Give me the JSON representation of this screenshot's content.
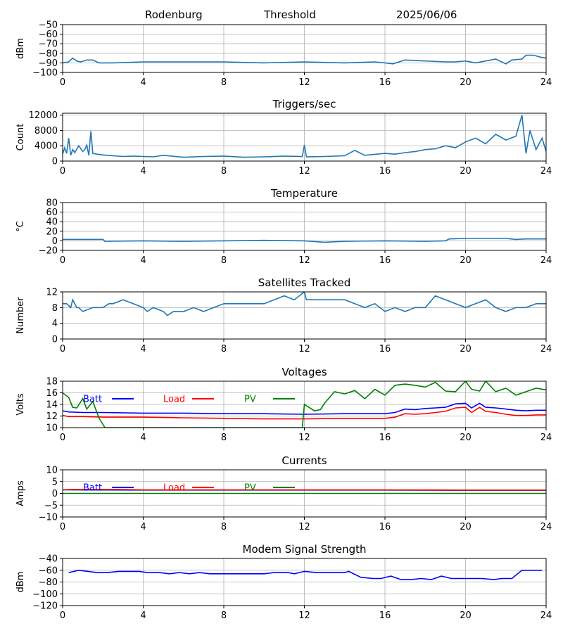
{
  "header": {
    "station": "Rodenburg",
    "mode": "Threshold",
    "date": "2025/06/06"
  },
  "chart_data": [
    {
      "type": "line",
      "title": "",
      "ylabel": "dBm",
      "xlim": [
        0,
        24
      ],
      "xticks": [
        0,
        4,
        8,
        12,
        16,
        20,
        24
      ],
      "ylim": [
        -100,
        -50
      ],
      "yticks": [
        -100,
        -90,
        -80,
        -70,
        -60,
        -50
      ],
      "grid": true,
      "series": [
        {
          "color": "#1f77b4",
          "x": [
            0,
            0.3,
            0.5,
            0.7,
            0.9,
            1.2,
            1.5,
            1.8,
            2.5,
            4,
            6,
            8,
            10,
            12,
            14,
            15.5,
            16,
            16.4,
            17,
            18,
            19,
            19.5,
            20,
            20.5,
            21,
            21.5,
            22,
            22.3,
            22.8,
            23,
            23.4,
            23.7,
            24
          ],
          "values": [
            -90,
            -89,
            -85,
            -88,
            -89,
            -87,
            -87,
            -90,
            -90,
            -89,
            -89,
            -89,
            -90,
            -89,
            -90,
            -89,
            -90,
            -91,
            -87,
            -88,
            -89,
            -89,
            -88,
            -90,
            -88,
            -86,
            -91,
            -87,
            -86,
            -82,
            -82,
            -84,
            -85
          ]
        }
      ]
    },
    {
      "type": "line",
      "title": "Triggers/sec",
      "ylabel": "Count",
      "xlim": [
        0,
        24
      ],
      "xticks": [
        0,
        4,
        8,
        12,
        16,
        20,
        24
      ],
      "ylim": [
        0,
        12500
      ],
      "yticks": [
        0,
        4000,
        8000,
        12000
      ],
      "grid": true,
      "series": [
        {
          "color": "#1f77b4",
          "x": [
            0,
            0.1,
            0.2,
            0.3,
            0.4,
            0.5,
            0.6,
            0.8,
            1,
            1.1,
            1.2,
            1.3,
            1.4,
            1.5,
            1.7,
            2,
            2.5,
            3,
            3.5,
            4,
            4.5,
            5,
            6,
            7,
            8,
            9,
            10,
            11,
            11.9,
            12,
            12.1,
            13,
            14,
            14.5,
            15,
            16,
            16.5,
            17,
            17.5,
            18,
            18.5,
            19,
            19.5,
            20,
            20.5,
            21,
            21.5,
            22,
            22.5,
            22.8,
            23,
            23.2,
            23.5,
            23.8,
            24
          ],
          "values": [
            1800,
            3500,
            2000,
            6000,
            1500,
            3000,
            2200,
            4000,
            2500,
            3000,
            4200,
            1500,
            7800,
            2000,
            1800,
            1600,
            1400,
            1200,
            1300,
            1200,
            1100,
            1500,
            1000,
            1200,
            1300,
            1000,
            1100,
            1300,
            1200,
            4200,
            1100,
            1200,
            1400,
            2800,
            1500,
            2000,
            1800,
            2200,
            2500,
            3000,
            3200,
            4000,
            3500,
            5000,
            6000,
            4500,
            7000,
            5500,
            6500,
            12000,
            2000,
            8000,
            3000,
            6000,
            2500
          ]
        }
      ]
    },
    {
      "type": "line",
      "title": "Temperature",
      "ylabel": "°C",
      "xlim": [
        0,
        24
      ],
      "xticks": [
        0,
        4,
        8,
        12,
        16,
        20,
        24
      ],
      "ylim": [
        -20,
        80
      ],
      "yticks": [
        -20,
        0,
        20,
        40,
        60,
        80
      ],
      "grid": true,
      "series": [
        {
          "color": "#1f77b4",
          "x": [
            0,
            2,
            2.1,
            4,
            6,
            8,
            10,
            12,
            13,
            14,
            16,
            18,
            19,
            19.2,
            20,
            22,
            22.5,
            23,
            24
          ],
          "values": [
            3,
            3,
            -1,
            0,
            -1,
            0,
            1,
            0,
            -3,
            -1,
            0,
            -1,
            0,
            4,
            5,
            5,
            3,
            4,
            4
          ]
        }
      ]
    },
    {
      "type": "line",
      "title": "Satellites Tracked",
      "ylabel": "Number",
      "xlim": [
        0,
        24
      ],
      "xticks": [
        0,
        4,
        8,
        12,
        16,
        20,
        24
      ],
      "ylim": [
        0,
        12
      ],
      "yticks": [
        0,
        4,
        8,
        12
      ],
      "grid": true,
      "series": [
        {
          "color": "#1f77b4",
          "x": [
            0,
            0.2,
            0.4,
            0.5,
            0.7,
            0.8,
            1,
            1.5,
            2,
            2.3,
            2.5,
            3,
            3.5,
            4,
            4.2,
            4.5,
            5,
            5.2,
            5.5,
            6,
            6.5,
            7,
            7.5,
            8,
            9,
            10,
            10.5,
            11,
            11.5,
            12,
            12.1,
            14,
            14.5,
            15,
            15.5,
            16,
            16.5,
            17,
            17.5,
            18,
            18.5,
            19,
            19.5,
            20,
            20.5,
            21,
            21.5,
            22,
            22.5,
            23,
            23.5,
            24
          ],
          "values": [
            9,
            9,
            8,
            10,
            8,
            8,
            7,
            8,
            8,
            9,
            9,
            10,
            9,
            8,
            7,
            8,
            7,
            6,
            7,
            7,
            8,
            7,
            8,
            9,
            9,
            9,
            10,
            11,
            10,
            12,
            10,
            10,
            9,
            8,
            9,
            7,
            8,
            7,
            8,
            8,
            11,
            10,
            9,
            8,
            9,
            10,
            8,
            7,
            8,
            8,
            9,
            9
          ]
        }
      ]
    },
    {
      "type": "line",
      "title": "Voltages",
      "ylabel": "Volts",
      "xlim": [
        0,
        24
      ],
      "xticks": [
        0,
        4,
        8,
        12,
        16,
        20,
        24
      ],
      "ylim": [
        10,
        18
      ],
      "yticks": [
        10,
        12,
        14,
        16,
        18
      ],
      "grid": true,
      "legend": "top-left",
      "series": [
        {
          "name": "Batt",
          "color": "#0000ff",
          "x": [
            0,
            0.3,
            1,
            2,
            4,
            6,
            8,
            10,
            12,
            14,
            15,
            16,
            16.5,
            17,
            17.5,
            18,
            18.5,
            19,
            19.5,
            20,
            20.3,
            20.7,
            21,
            21.5,
            22,
            22.5,
            23,
            23.5,
            24
          ],
          "values": [
            12.9,
            12.7,
            12.6,
            12.6,
            12.5,
            12.5,
            12.4,
            12.4,
            12.3,
            12.4,
            12.4,
            12.4,
            12.6,
            13.2,
            13.1,
            13.3,
            13.4,
            13.5,
            14.1,
            14.2,
            13.4,
            14.2,
            13.5,
            13.4,
            13.2,
            13,
            12.9,
            13,
            13
          ]
        },
        {
          "name": "Load",
          "color": "#ff0000",
          "x": [
            0,
            0.3,
            1,
            2,
            4,
            6,
            8,
            10,
            12,
            14,
            15,
            16,
            16.5,
            17,
            17.5,
            18,
            18.5,
            19,
            19.5,
            20,
            20.3,
            20.7,
            21,
            21.5,
            22,
            22.5,
            23,
            23.5,
            24
          ],
          "values": [
            12.1,
            11.9,
            11.9,
            11.8,
            11.8,
            11.7,
            11.6,
            11.5,
            11.5,
            11.6,
            11.6,
            11.6,
            11.8,
            12.4,
            12.3,
            12.4,
            12.6,
            12.8,
            13.4,
            13.5,
            12.6,
            13.5,
            12.8,
            12.6,
            12.3,
            12.1,
            12.1,
            12.2,
            12.2
          ]
        },
        {
          "name": "PV",
          "color": "#008000",
          "x": [
            0,
            0.3,
            0.5,
            0.7,
            1,
            1.2,
            1.5,
            1.8,
            2.1,
            11.9,
            12,
            12.5,
            12.8,
            13,
            13.5,
            14,
            14.5,
            15,
            15.5,
            16,
            16.5,
            17,
            17.5,
            18,
            18.5,
            19,
            19.5,
            20,
            20.3,
            20.7,
            21,
            21.5,
            22,
            22.5,
            23,
            23.5,
            24
          ],
          "values": [
            16,
            15.2,
            13.5,
            13.4,
            15,
            13.2,
            14.5,
            11.7,
            10,
            10,
            14,
            12.9,
            13.1,
            14.2,
            16.2,
            15.8,
            16.4,
            15,
            16.6,
            15.6,
            17.3,
            17.5,
            17.3,
            17,
            17.8,
            16.3,
            16.2,
            18,
            16.6,
            16.3,
            18,
            16.2,
            16.8,
            15.6,
            16.2,
            16.8,
            16.5
          ]
        }
      ]
    },
    {
      "type": "line",
      "title": "Currents",
      "ylabel": "Amps",
      "xlim": [
        0,
        24
      ],
      "xticks": [
        0,
        4,
        8,
        12,
        16,
        20,
        24
      ],
      "ylim": [
        -10,
        10
      ],
      "yticks": [
        -10,
        -5,
        0,
        5,
        10
      ],
      "grid": true,
      "legend": "top-left",
      "series": [
        {
          "name": "Batt",
          "color": "#0000ff",
          "x": [
            0,
            4,
            8,
            12,
            16,
            20,
            24
          ],
          "values": [
            1.5,
            1.4,
            1.4,
            1.4,
            1.4,
            1.3,
            1.3
          ]
        },
        {
          "name": "Load",
          "color": "#ff0000",
          "x": [
            0,
            0.5,
            2,
            3,
            4,
            8,
            12,
            16,
            20,
            24
          ],
          "values": [
            1.5,
            1.7,
            1.7,
            1.6,
            1.5,
            1.5,
            1.5,
            1.5,
            1.4,
            1.4
          ]
        },
        {
          "name": "PV",
          "color": "#008000",
          "x": [
            0,
            24
          ],
          "values": [
            0,
            0
          ]
        }
      ]
    },
    {
      "type": "line",
      "title": "Modem Signal Strength",
      "ylabel": "dBm",
      "xlim": [
        0,
        24
      ],
      "xticks": [
        0,
        4,
        8,
        12,
        16,
        20,
        24
      ],
      "ylim": [
        -120,
        -40
      ],
      "yticks": [
        -120,
        -100,
        -80,
        -60,
        -40
      ],
      "grid": true,
      "series": [
        {
          "color": "#0000ff",
          "x": [
            0.3,
            0.8,
            1.7,
            2.2,
            2.8,
            3.8,
            4.2,
            4.8,
            5.3,
            5.8,
            6.3,
            6.8,
            7.3,
            8.3,
            9.3,
            10,
            10.5,
            11.2,
            11.5,
            12,
            12.6,
            13.2,
            14,
            14.2,
            14.8,
            15.4,
            15.8,
            16.3,
            16.8,
            17.3,
            17.8,
            18.3,
            18.8,
            19.3,
            19.7,
            20.3,
            20.8,
            21.4,
            21.8,
            22.3,
            22.8,
            23.3,
            23.8
          ],
          "values": [
            -64,
            -60,
            -64,
            -64,
            -62,
            -62,
            -64,
            -64,
            -66,
            -64,
            -66,
            -64,
            -66,
            -66,
            -66,
            -66,
            -64,
            -64,
            -66,
            -62,
            -64,
            -64,
            -64,
            -62,
            -72,
            -74,
            -74,
            -70,
            -76,
            -76,
            -74,
            -76,
            -70,
            -74,
            -74,
            -74,
            -74,
            -76,
            -74,
            -74,
            -60,
            -60,
            -60
          ]
        }
      ]
    }
  ]
}
